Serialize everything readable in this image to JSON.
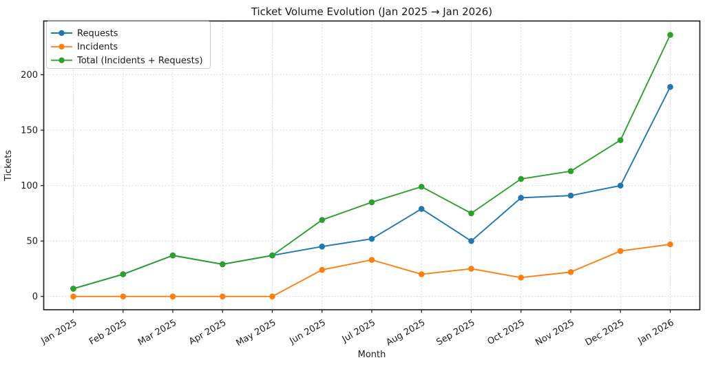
{
  "chart_data": {
    "type": "line",
    "title": "Ticket Volume Evolution (Jan 2025 → Jan 2026)",
    "xlabel": "Month",
    "ylabel": "Tickets",
    "categories": [
      "Jan 2025",
      "Feb 2025",
      "Mar 2025",
      "Apr 2025",
      "May 2025",
      "Jun 2025",
      "Jul 2025",
      "Aug 2025",
      "Sep 2025",
      "Oct 2025",
      "Nov 2025",
      "Dec 2025",
      "Jan 2026"
    ],
    "series": [
      {
        "name": "Requests",
        "color": "#1f77b4",
        "values": [
          7,
          20,
          37,
          29,
          37,
          45,
          52,
          79,
          50,
          89,
          91,
          100,
          189
        ]
      },
      {
        "name": "Incidents",
        "color": "#ff7f0e",
        "values": [
          0,
          0,
          0,
          0,
          0,
          24,
          33,
          20,
          25,
          17,
          22,
          41,
          47
        ]
      },
      {
        "name": "Total (Incidents + Requests)",
        "color": "#2ca02c",
        "values": [
          7,
          20,
          37,
          29,
          37,
          69,
          85,
          99,
          75,
          106,
          113,
          141,
          236
        ]
      }
    ],
    "yticks": [
      0,
      50,
      100,
      150,
      200
    ],
    "ylim": [
      -12,
      248.5
    ],
    "grid": true,
    "grid_style": "dashed",
    "legend_position": "upper-left",
    "marker": "circle",
    "x_tick_rotation": 30
  },
  "style": {
    "background": "#ffffff",
    "text_color": "#1a1a1a",
    "spine_color": "#262626",
    "grid_color": "#d9d9d9",
    "tick_color": "#262626",
    "legend_border": "#cccccc",
    "legend_fill": "#ffffff"
  }
}
